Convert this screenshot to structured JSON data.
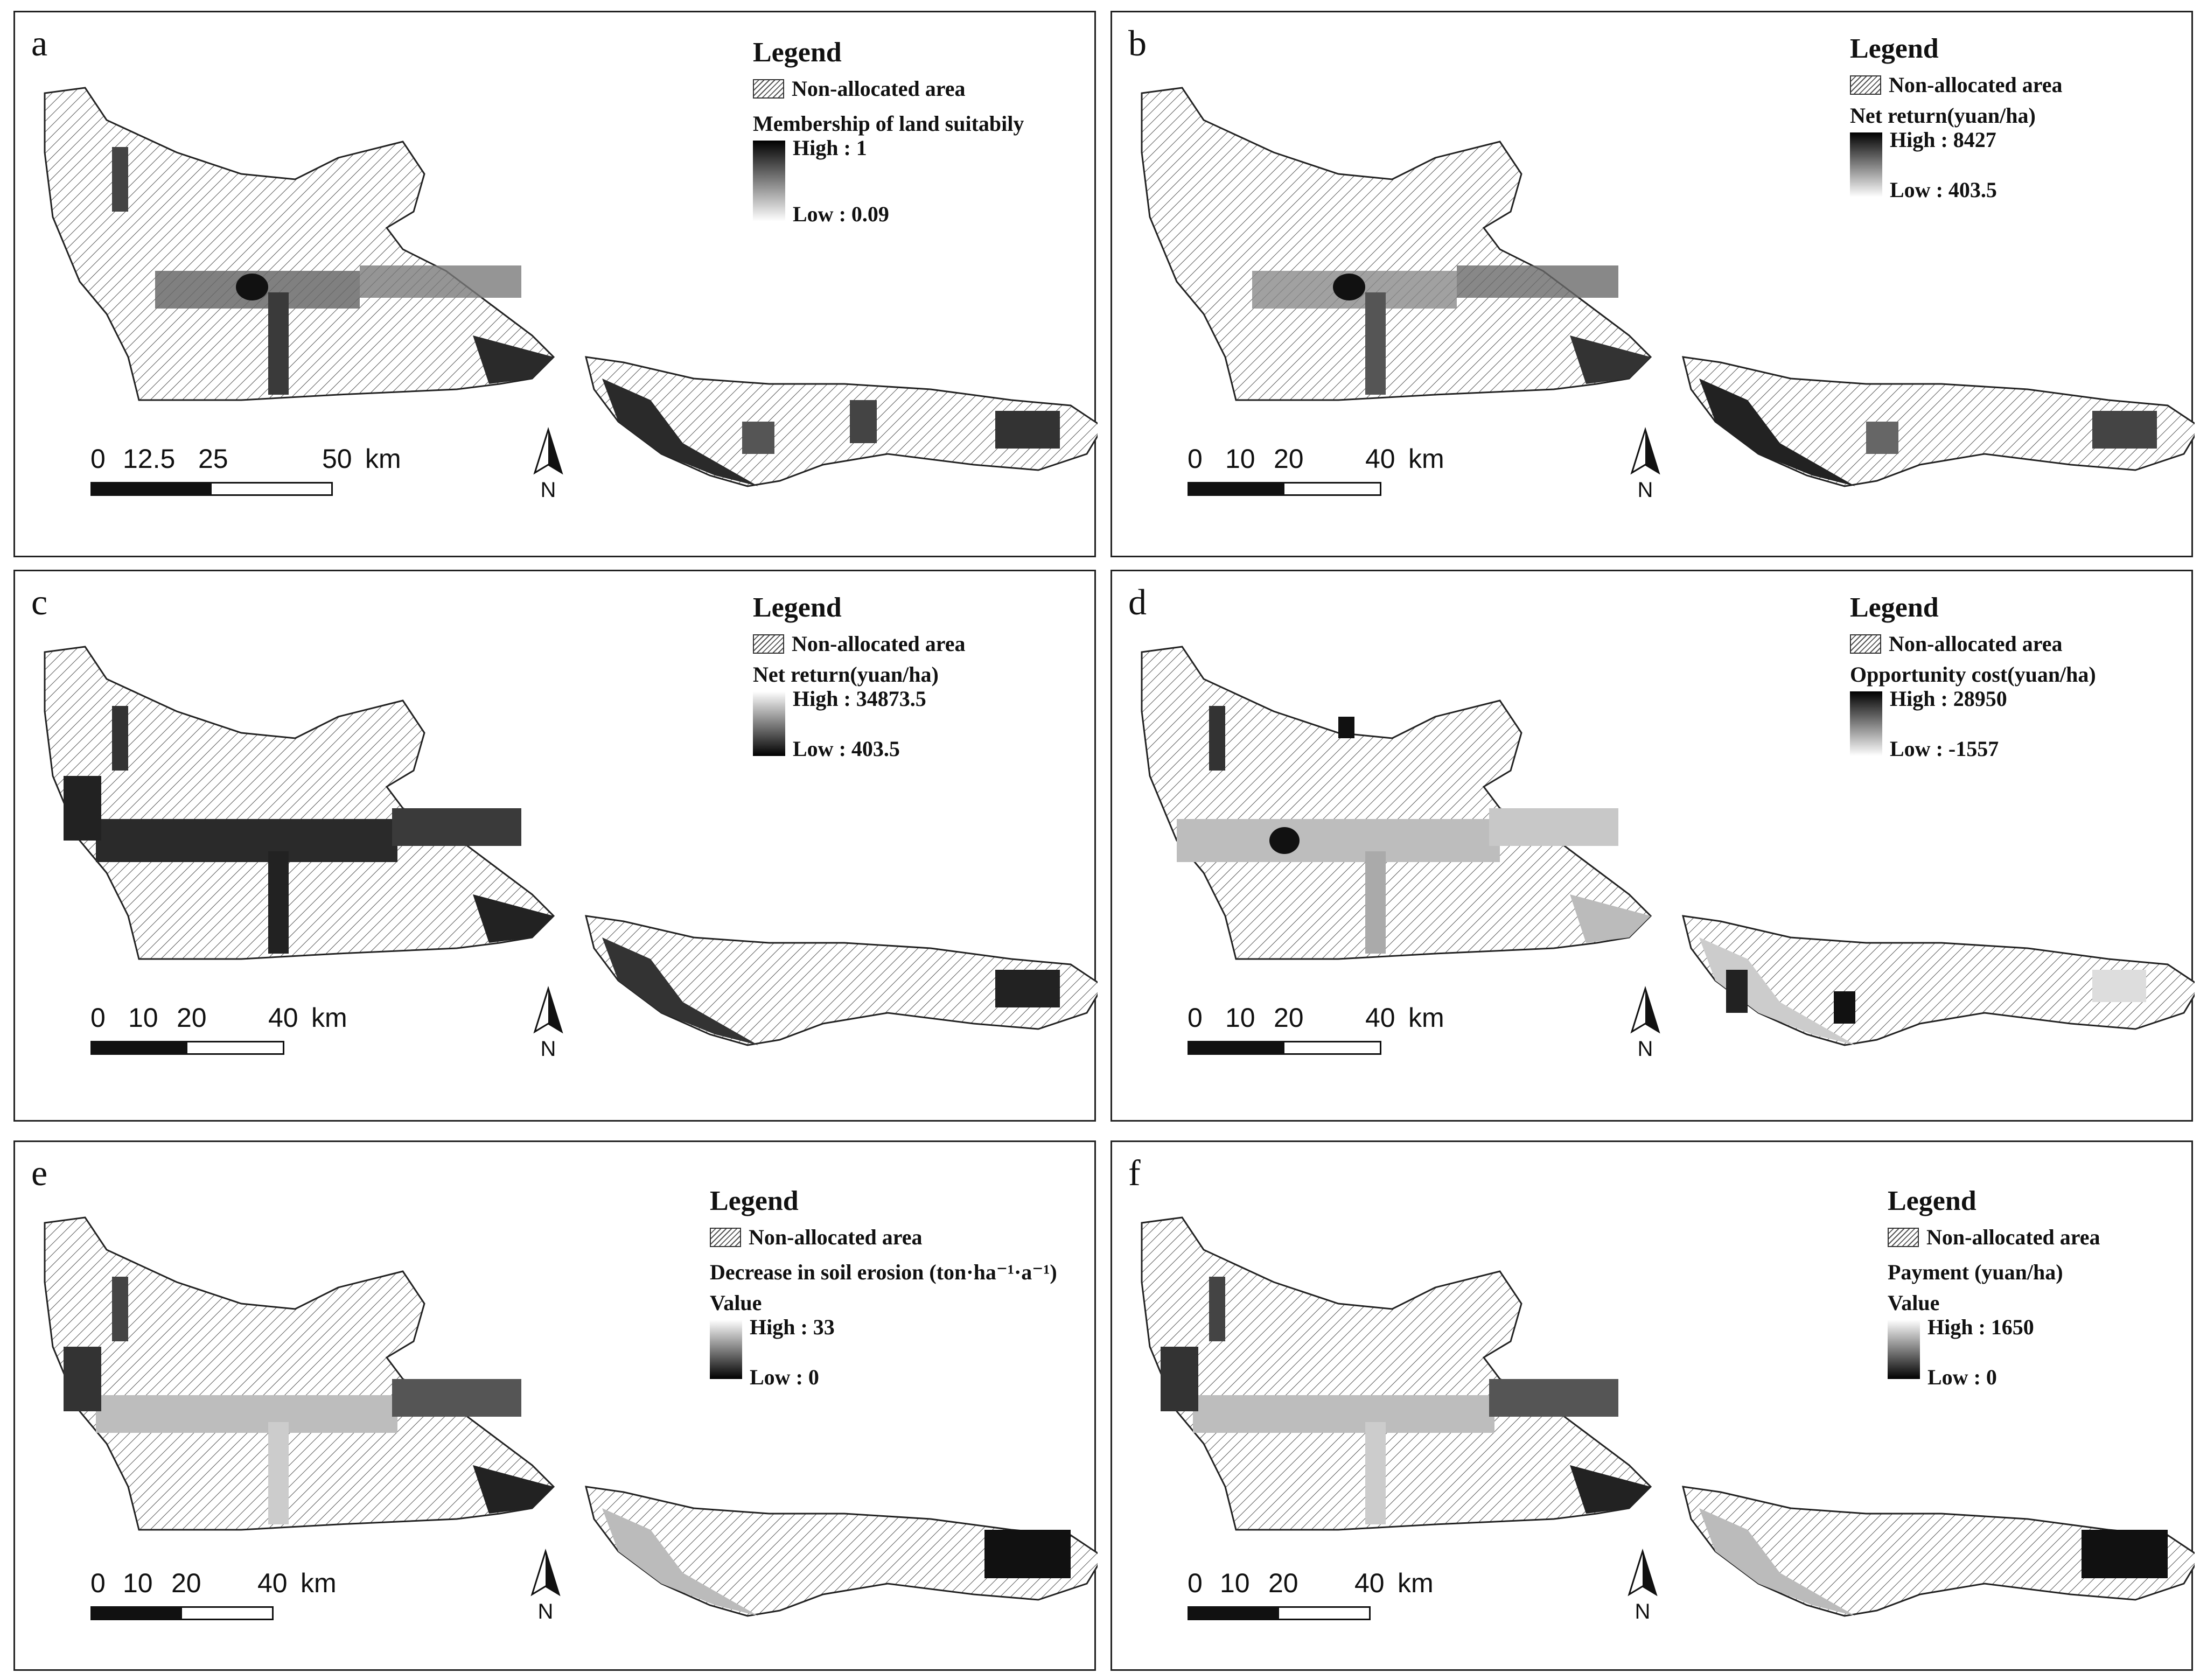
{
  "legend_title": "Legend",
  "non_allocated_label": "Non-allocated area",
  "north_label": "N",
  "panels": {
    "a": {
      "letter": "a",
      "variable": "Membership of land suitabily",
      "high": "High : 1",
      "low": "Low : 0.09",
      "scale_ticks": [
        "0",
        "12.5",
        "25",
        "50",
        "km"
      ],
      "ramp": "dark-top"
    },
    "b": {
      "letter": "b",
      "variable": "Net return(yuan/ha)",
      "high": "High : 8427",
      "low": "Low : 403.5",
      "scale_ticks": [
        "0",
        "10",
        "20",
        "40",
        "km"
      ],
      "ramp": "dark-top"
    },
    "c": {
      "letter": "c",
      "variable": "Net return(yuan/ha)",
      "high": "High : 34873.5",
      "low": "Low : 403.5",
      "scale_ticks": [
        "0",
        "10",
        "20",
        "40",
        "km"
      ],
      "ramp": "light-top"
    },
    "d": {
      "letter": "d",
      "variable": "Opportunity cost(yuan/ha)",
      "high": "High : 28950",
      "low": "Low : -1557",
      "scale_ticks": [
        "0",
        "10",
        "20",
        "40",
        "km"
      ],
      "ramp": "dark-top"
    },
    "e": {
      "letter": "e",
      "variable": "Decrease in soil erosion (ton·ha⁻¹·a⁻¹)",
      "sub": "Value",
      "high": "High : 33",
      "low": "Low : 0",
      "scale_ticks": [
        "0",
        "10",
        "20",
        "40",
        "km"
      ],
      "ramp": "light-top"
    },
    "f": {
      "letter": "f",
      "variable": "Payment (yuan/ha)",
      "sub": "Value",
      "high": "High : 1650",
      "low": "Low : 0",
      "scale_ticks": [
        "0",
        "10",
        "20",
        "40",
        "km"
      ],
      "ramp": "light-top"
    }
  },
  "colors": {
    "ink": "#111111",
    "hatch": "#555555",
    "dark_patch": "#2a2a2a",
    "mid_patch": "#7a7a7a",
    "light_patch": "#bdbdbd"
  }
}
